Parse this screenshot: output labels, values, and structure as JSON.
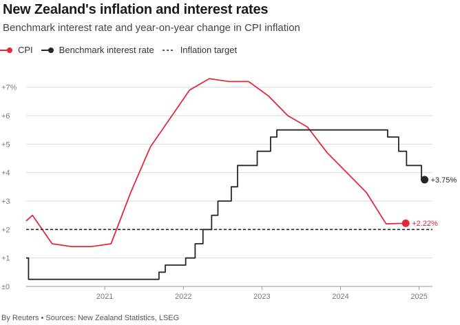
{
  "title": "New Zealand's inflation and interest rates",
  "subtitle": "Benchmark interest rate and year-on-year change in CPI inflation",
  "footer": "By Reuters • Sources: New Zealand Statistics, LSEG",
  "colors": {
    "cpi": "#e3283c",
    "rate": "#262626",
    "target": "#262626",
    "grid": "#d9d9d9",
    "axis": "#999999"
  },
  "chart_data": {
    "type": "line",
    "title": "New Zealand's inflation and interest rates",
    "subtitle": "Benchmark interest rate and year-on-year change in CPI inflation",
    "xlabel": "",
    "ylabel": "",
    "xlim": [
      2020.0,
      2025.17
    ],
    "ylim": [
      0,
      7.5
    ],
    "x_ticks": [
      {
        "value": 2021.0,
        "label": "2021"
      },
      {
        "value": 2022.0,
        "label": "2022"
      },
      {
        "value": 2023.0,
        "label": "2023"
      },
      {
        "value": 2024.0,
        "label": "2024"
      },
      {
        "value": 2025.0,
        "label": "2025"
      }
    ],
    "y_ticks": [
      {
        "value": 0,
        "label": "±0"
      },
      {
        "value": 1,
        "label": "+1"
      },
      {
        "value": 2,
        "label": "+2"
      },
      {
        "value": 3,
        "label": "+3"
      },
      {
        "value": 4,
        "label": "+4"
      },
      {
        "value": 5,
        "label": "+5"
      },
      {
        "value": 6,
        "label": "+6"
      },
      {
        "value": 7,
        "label": "+7%"
      }
    ],
    "grid": true,
    "legend": "top-left",
    "series": [
      {
        "name": "CPI",
        "color": "#e3283c",
        "style": "line",
        "end_label": "+2.22%",
        "points": [
          [
            2020.0,
            2.3
          ],
          [
            2020.08,
            2.5
          ],
          [
            2020.33,
            1.5
          ],
          [
            2020.58,
            1.4
          ],
          [
            2020.83,
            1.4
          ],
          [
            2021.08,
            1.5
          ],
          [
            2021.33,
            3.3
          ],
          [
            2021.58,
            4.9
          ],
          [
            2021.83,
            5.9
          ],
          [
            2022.08,
            6.9
          ],
          [
            2022.33,
            7.3
          ],
          [
            2022.58,
            7.2
          ],
          [
            2022.83,
            7.2
          ],
          [
            2023.08,
            6.7
          ],
          [
            2023.33,
            6.0
          ],
          [
            2023.58,
            5.6
          ],
          [
            2023.83,
            4.7
          ],
          [
            2024.08,
            4.0
          ],
          [
            2024.33,
            3.3
          ],
          [
            2024.58,
            2.2
          ],
          [
            2024.83,
            2.22
          ]
        ]
      },
      {
        "name": "Benchmark interest rate",
        "color": "#262626",
        "style": "step",
        "end_label": "+3.75%",
        "points": [
          [
            2020.0,
            1.0
          ],
          [
            2020.03,
            0.25
          ],
          [
            2021.69,
            0.5
          ],
          [
            2021.77,
            0.75
          ],
          [
            2022.03,
            1.0
          ],
          [
            2022.15,
            1.5
          ],
          [
            2022.25,
            2.0
          ],
          [
            2022.36,
            2.5
          ],
          [
            2022.44,
            3.0
          ],
          [
            2022.61,
            3.5
          ],
          [
            2022.69,
            4.25
          ],
          [
            2022.94,
            4.75
          ],
          [
            2023.11,
            5.25
          ],
          [
            2023.19,
            5.5
          ],
          [
            2024.6,
            5.25
          ],
          [
            2024.74,
            4.75
          ],
          [
            2024.84,
            4.25
          ],
          [
            2025.03,
            3.75
          ],
          [
            2025.07,
            3.75
          ]
        ]
      },
      {
        "name": "Inflation target",
        "color": "#262626",
        "style": "dashed",
        "points": [
          [
            2020.0,
            2.0
          ],
          [
            2025.17,
            2.0
          ]
        ]
      }
    ]
  }
}
